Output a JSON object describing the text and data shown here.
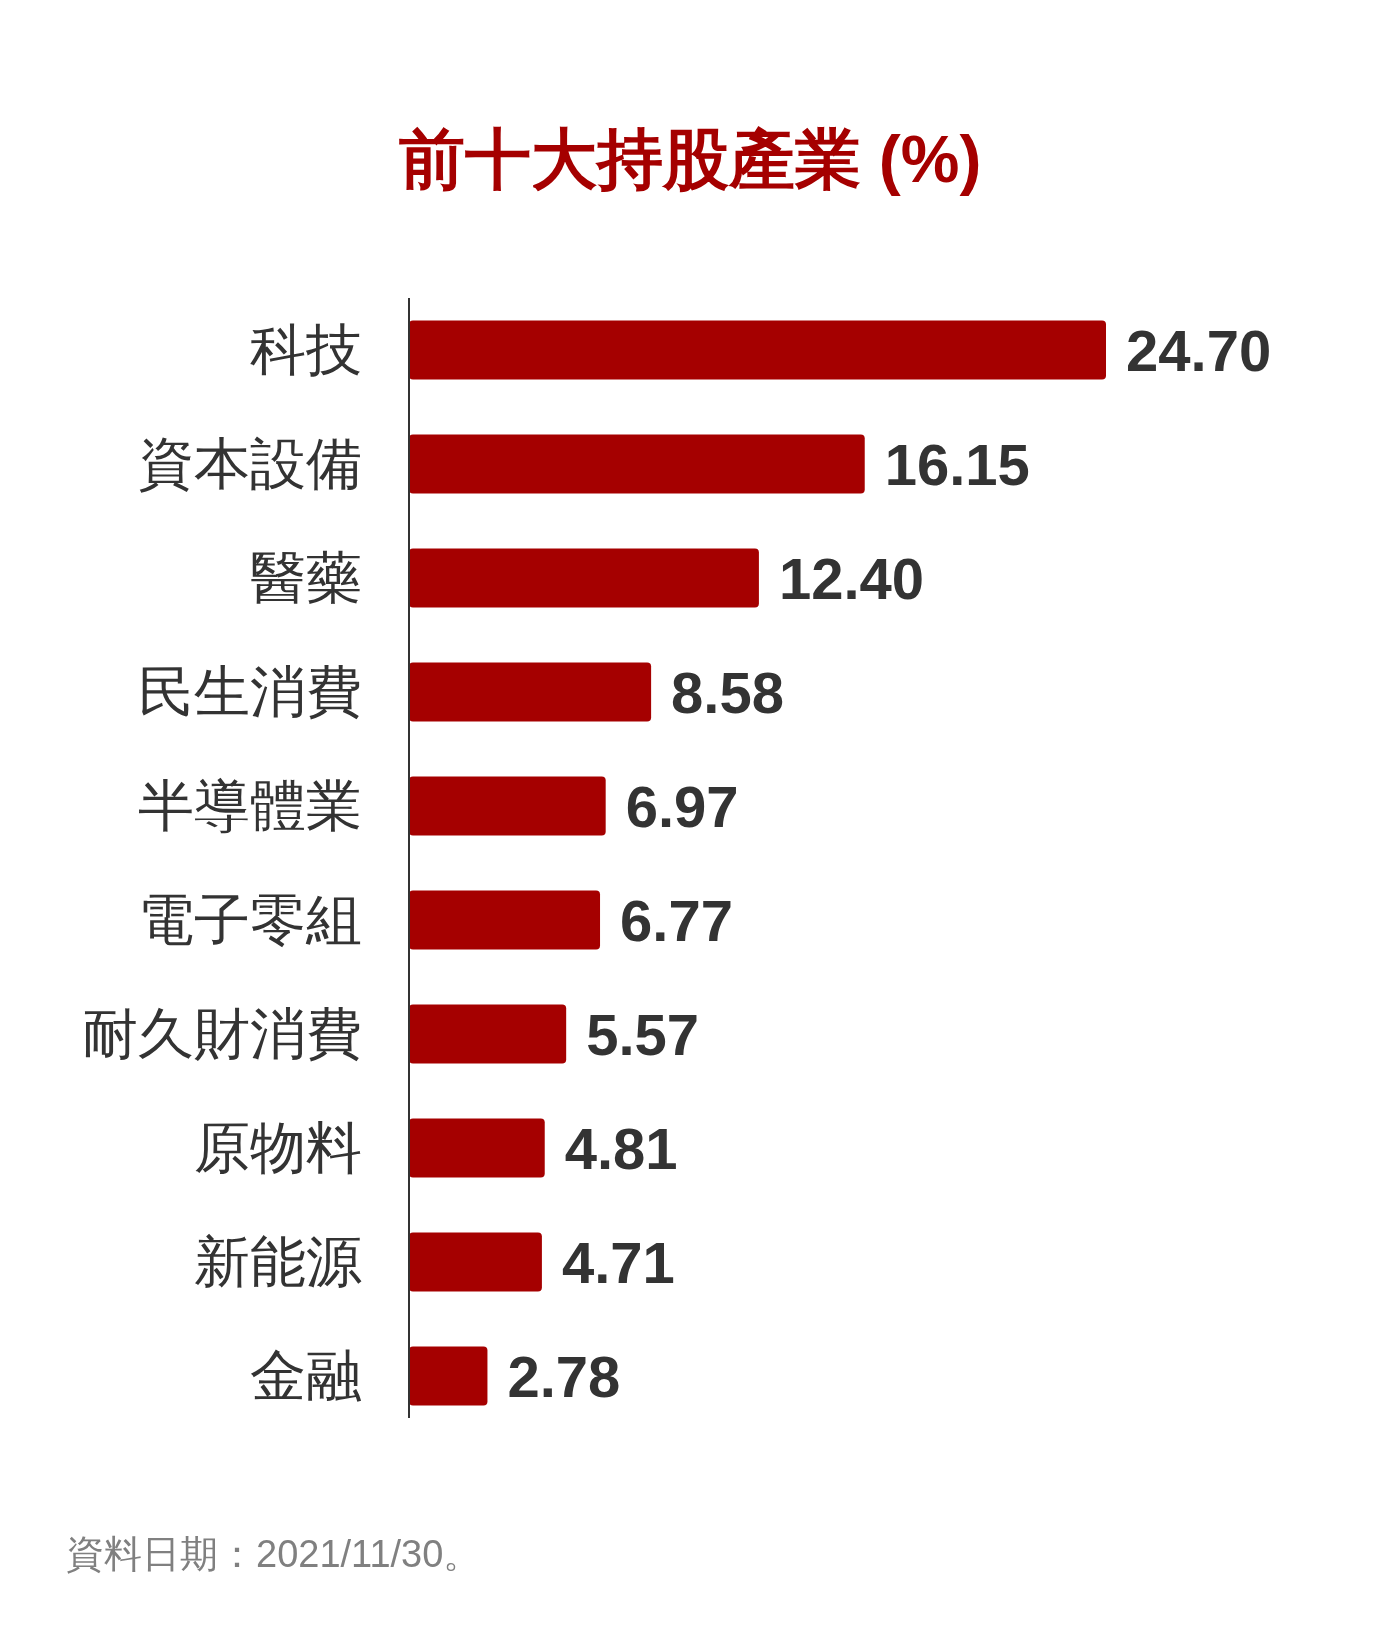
{
  "chart_data": {
    "type": "bar",
    "orientation": "horizontal",
    "title": "前十大持股產業 (%)",
    "categories": [
      "科技",
      "資本設備",
      "醫藥",
      "民生消費",
      "半導體業",
      "電子零組",
      "耐久財消費",
      "原物料",
      "新能源",
      "金融"
    ],
    "values": [
      24.7,
      16.15,
      12.4,
      8.58,
      6.97,
      6.77,
      5.57,
      4.81,
      4.71,
      2.78
    ],
    "value_labels": [
      "24.70",
      "16.15",
      "12.40",
      "8.58",
      "6.97",
      "6.77",
      "5.57",
      "4.81",
      "4.71",
      "2.78"
    ],
    "color": "#a50000",
    "annotations": [
      "資料日期：2021/11/30。"
    ]
  }
}
